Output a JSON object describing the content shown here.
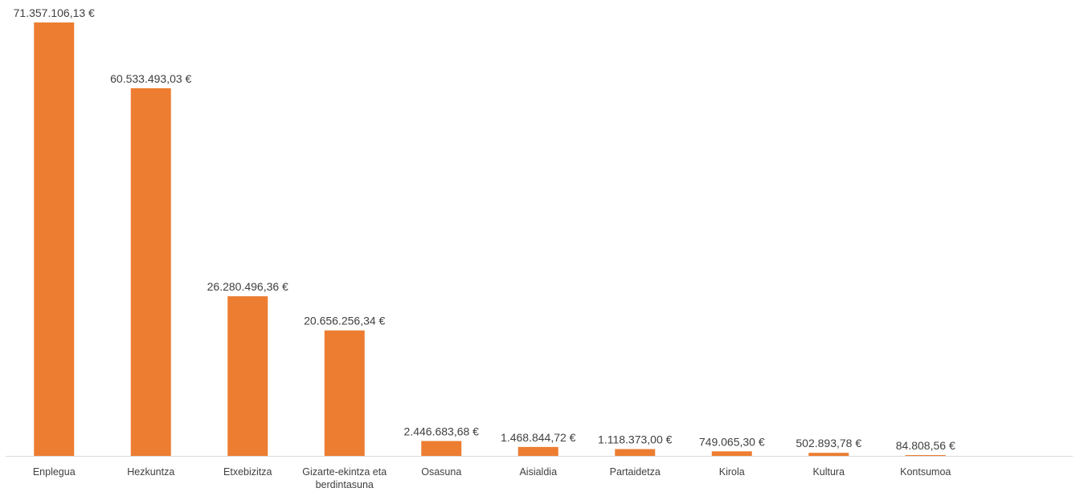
{
  "chart_data": {
    "type": "bar",
    "categories": [
      [
        "Enplegua"
      ],
      [
        "Hezkuntza"
      ],
      [
        "Etxebizitza"
      ],
      [
        "Gizarte-ekintza eta",
        "berdintasuna"
      ],
      [
        "Osasuna"
      ],
      [
        "Aisialdia"
      ],
      [
        "Partaidetza"
      ],
      [
        "Kirola"
      ],
      [
        "Kultura"
      ],
      [
        "Kontsumoa"
      ]
    ],
    "values": [
      71357106.13,
      60533493.03,
      26280496.36,
      20656256.34,
      2446683.68,
      1468844.72,
      1118373.0,
      749065.3,
      502893.78,
      84808.56
    ],
    "value_labels": [
      "71.357.106,13 €",
      "60.533.493,03 €",
      "26.280.496,36 €",
      "20.656.256,34 €",
      "2.446.683,68 €",
      "1.468.844,72 €",
      "1.118.373,00 €",
      "749.065,30 €",
      "502.893,78 €",
      "84.808,56 €"
    ],
    "ylim": [
      0,
      71357106.13
    ],
    "grid": false,
    "legend": "none",
    "bar_color": "#ED7D31",
    "axis_color": "#D9D9D9",
    "text_color": "#404040"
  }
}
